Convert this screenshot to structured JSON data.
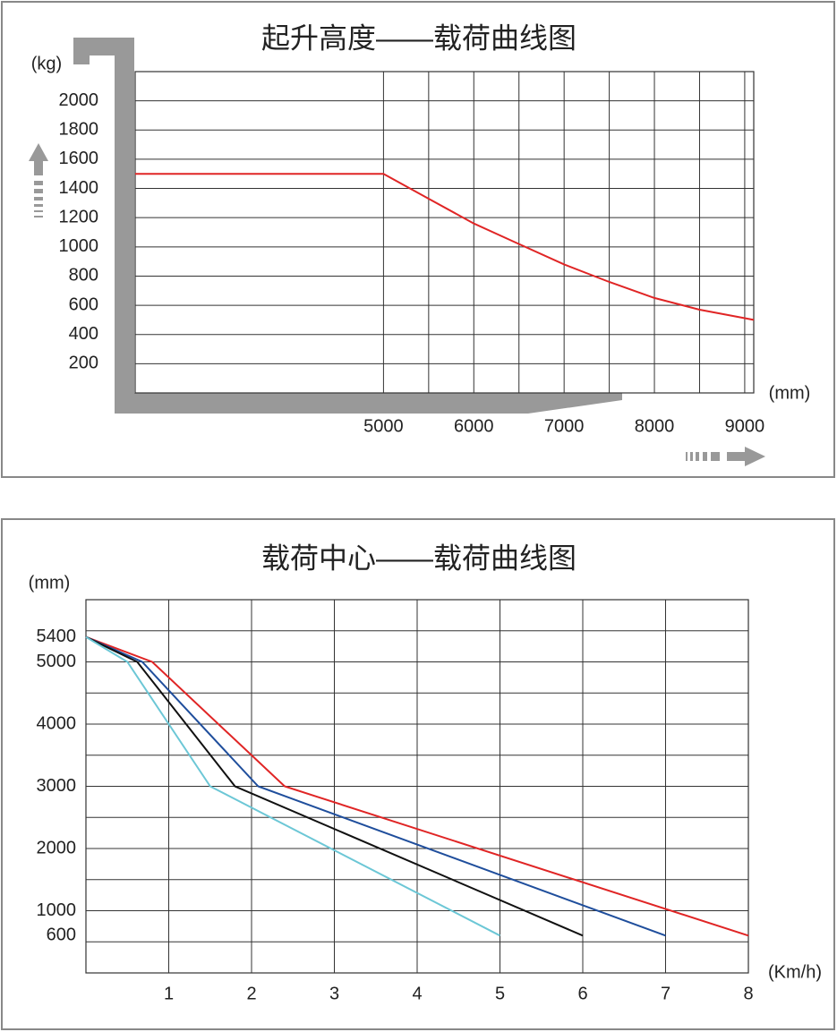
{
  "chart_data": [
    {
      "type": "line",
      "title": "起升高度——载荷曲线图",
      "y_label": "(kg)",
      "x_label": "(mm)",
      "x": [
        2250,
        5000,
        5500,
        6000,
        6500,
        7000,
        7500,
        8000,
        8500,
        9100
      ],
      "series": [
        {
          "color": "#e02525",
          "values": [
            1500,
            1500,
            1330,
            1160,
            1020,
            880,
            760,
            650,
            570,
            500
          ]
        }
      ],
      "xlim": [
        2250,
        9100
      ],
      "xticks": [
        5000,
        6000,
        7000,
        8000,
        9000
      ],
      "ylim": [
        0,
        2200
      ],
      "yticks": [
        200,
        400,
        600,
        800,
        1000,
        1200,
        1400,
        1600,
        1800,
        2000
      ],
      "grid": true
    },
    {
      "type": "line",
      "title": "载荷中心——载荷曲线图",
      "y_label": "(mm)",
      "x_label": "(Km/h)",
      "series": [
        {
          "color": "#e02525",
          "x": [
            0,
            0.8,
            2.4,
            8
          ],
          "values": [
            5400,
            5000,
            3000,
            600
          ]
        },
        {
          "color": "#1f4e9c",
          "x": [
            0,
            0.68,
            2.08,
            7
          ],
          "values": [
            5400,
            5000,
            3000,
            600
          ]
        },
        {
          "color": "#111111",
          "x": [
            0,
            0.62,
            1.8,
            6
          ],
          "values": [
            5400,
            5000,
            3000,
            600
          ]
        },
        {
          "color": "#6cc7d6",
          "x": [
            0,
            0.5,
            1.5,
            5
          ],
          "values": [
            5400,
            5000,
            3000,
            600
          ]
        }
      ],
      "xlim": [
        0,
        8
      ],
      "xticks": [
        1,
        2,
        3,
        4,
        5,
        6,
        7,
        8
      ],
      "ylim": [
        0,
        6000
      ],
      "yticks": [
        600,
        1000,
        2000,
        3000,
        4000,
        5000,
        5400
      ],
      "grid": true
    }
  ]
}
